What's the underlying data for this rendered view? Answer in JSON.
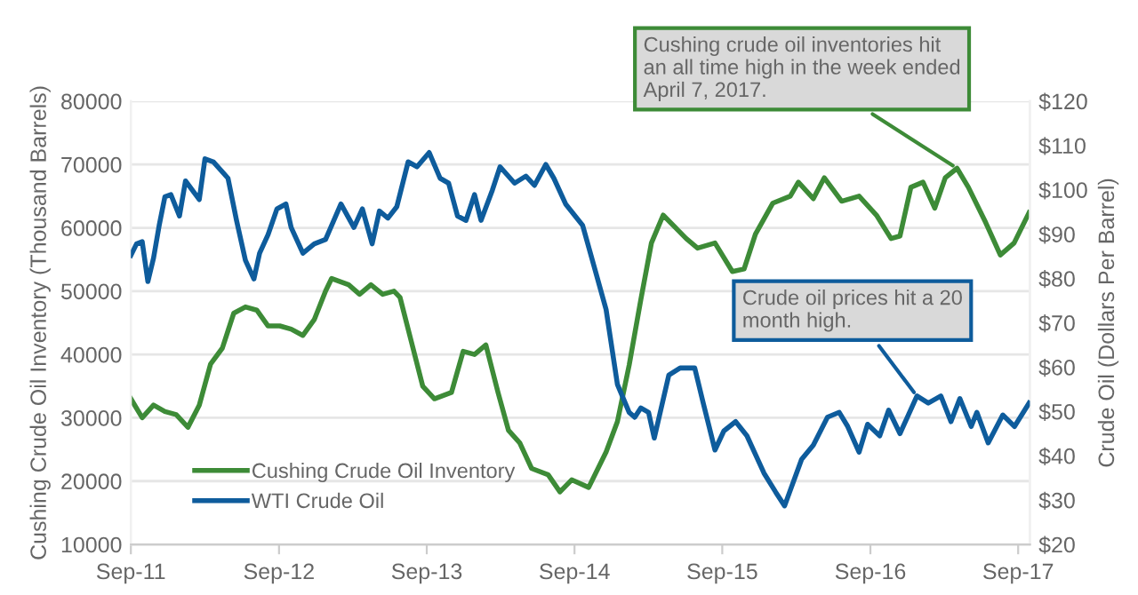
{
  "chart_data": {
    "type": "line",
    "ylabel": "Cushing Crude Oil Inventory (Thousand Barrels)",
    "y2label": "Crude Oil (Dollars Per Barrel)",
    "xlim": [
      "2011-09-01",
      "2017-09-30"
    ],
    "xticks": [
      {
        "value": "2011-09-01",
        "label": "Sep-11"
      },
      {
        "value": "2012-09-01",
        "label": "Sep-12"
      },
      {
        "value": "2013-09-01",
        "label": "Sep-13"
      },
      {
        "value": "2014-09-01",
        "label": "Sep-14"
      },
      {
        "value": "2015-09-01",
        "label": "Sep-15"
      },
      {
        "value": "2016-09-01",
        "label": "Sep-16"
      },
      {
        "value": "2017-09-01",
        "label": "Sep-17"
      }
    ],
    "ylim": [
      10000,
      80000
    ],
    "yticks": [
      10000,
      20000,
      30000,
      40000,
      50000,
      60000,
      70000,
      80000
    ],
    "y2lim": [
      20,
      120
    ],
    "y2ticks": [
      {
        "value": 20,
        "label": "$20"
      },
      {
        "value": 30,
        "label": "$30"
      },
      {
        "value": 40,
        "label": "$40"
      },
      {
        "value": 50,
        "label": "$50"
      },
      {
        "value": 60,
        "label": "$60"
      },
      {
        "value": 70,
        "label": "$70"
      },
      {
        "value": 80,
        "label": "$80"
      },
      {
        "value": 90,
        "label": "$90"
      },
      {
        "value": 100,
        "label": "$100"
      },
      {
        "value": 110,
        "label": "$110"
      },
      {
        "value": 120,
        "label": "$120"
      }
    ],
    "grid": "y",
    "legend": "bottom left",
    "series": [
      {
        "name": "Cushing Crude Oil Inventory",
        "color": "#3d8b37",
        "axis": "y",
        "x": [
          "2011-09-01",
          "2011-09-29",
          "2011-10-27",
          "2011-11-24",
          "2011-12-22",
          "2012-01-20",
          "2012-02-17",
          "2012-03-16",
          "2012-04-14",
          "2012-05-12",
          "2012-06-10",
          "2012-07-08",
          "2012-08-05",
          "2012-09-03",
          "2012-10-01",
          "2012-10-30",
          "2012-11-27",
          "2012-12-25",
          "2013-01-09",
          "2013-02-20",
          "2013-03-19",
          "2013-04-16",
          "2013-05-15",
          "2013-06-12",
          "2013-06-27",
          "2013-07-25",
          "2013-08-22",
          "2013-09-20",
          "2013-11-01",
          "2013-11-30",
          "2013-12-28",
          "2014-01-25",
          "2014-02-24",
          "2014-03-22",
          "2014-04-19",
          "2014-05-18",
          "2014-06-28",
          "2014-07-27",
          "2014-08-25",
          "2014-10-06",
          "2014-11-18",
          "2014-12-16",
          "2015-01-14",
          "2015-02-12",
          "2015-03-10",
          "2015-04-08",
          "2015-06-04",
          "2015-07-02",
          "2015-08-14",
          "2015-09-26",
          "2015-10-25",
          "2015-11-22",
          "2016-01-04",
          "2016-02-16",
          "2016-03-07",
          "2016-04-13",
          "2016-05-10",
          "2016-06-22",
          "2016-08-04",
          "2016-09-16",
          "2016-10-22",
          "2016-11-13",
          "2016-12-10",
          "2017-01-09",
          "2017-02-07",
          "2017-03-05",
          "2017-04-03",
          "2017-05-01",
          "2017-06-13",
          "2017-07-19",
          "2017-08-22",
          "2017-09-28"
        ],
        "values": [
          33000,
          30000,
          32000,
          31000,
          30500,
          28500,
          32000,
          38500,
          41000,
          46500,
          47500,
          47000,
          44500,
          44500,
          44000,
          43000,
          45500,
          50000,
          52000,
          51000,
          49500,
          51000,
          49500,
          50000,
          49000,
          42000,
          35000,
          33000,
          34000,
          40500,
          40000,
          41500,
          34000,
          28000,
          26000,
          22000,
          21000,
          18300,
          20200,
          19000,
          24600,
          29400,
          38300,
          48700,
          57600,
          62000,
          58300,
          56800,
          57600,
          53100,
          53500,
          59000,
          63900,
          65000,
          67200,
          64600,
          67900,
          64200,
          65000,
          62000,
          58300,
          58700,
          66400,
          67200,
          63100,
          67900,
          69400,
          66400,
          60800,
          55700,
          57600,
          62400
        ]
      },
      {
        "name": "WTI Crude Oil",
        "color": "#0e5c9c",
        "axis": "y2",
        "x": [
          "2011-09-01",
          "2011-09-15",
          "2011-09-29",
          "2011-10-13",
          "2011-10-27",
          "2011-11-10",
          "2011-11-24",
          "2011-12-09",
          "2011-12-30",
          "2012-01-14",
          "2012-02-17",
          "2012-03-02",
          "2012-03-23",
          "2012-04-28",
          "2012-05-19",
          "2012-06-10",
          "2012-07-01",
          "2012-07-15",
          "2012-08-05",
          "2012-08-27",
          "2012-09-18",
          "2012-10-01",
          "2012-10-30",
          "2012-11-27",
          "2012-12-25",
          "2013-02-01",
          "2013-03-05",
          "2013-03-26",
          "2013-04-19",
          "2013-05-07",
          "2013-05-28",
          "2013-06-19",
          "2013-07-17",
          "2013-08-08",
          "2013-09-07",
          "2013-10-04",
          "2013-10-25",
          "2013-11-16",
          "2013-12-07",
          "2013-12-28",
          "2014-01-13",
          "2014-02-10",
          "2014-03-01",
          "2014-04-06",
          "2014-05-04",
          "2014-05-25",
          "2014-06-22",
          "2014-07-12",
          "2014-08-10",
          "2014-09-21",
          "2014-10-20",
          "2014-11-18",
          "2014-12-16",
          "2015-01-14",
          "2015-01-28",
          "2015-02-12",
          "2015-03-03",
          "2015-03-17",
          "2015-04-22",
          "2015-05-20",
          "2015-06-25",
          "2015-07-16",
          "2015-08-14",
          "2015-09-05",
          "2015-10-04",
          "2015-11-01",
          "2015-12-13",
          "2016-01-11",
          "2016-02-02",
          "2016-03-15",
          "2016-04-13",
          "2016-05-18",
          "2016-06-16",
          "2016-07-07",
          "2016-08-04",
          "2016-08-25",
          "2016-09-24",
          "2016-10-16",
          "2016-11-13",
          "2016-12-25",
          "2017-01-22",
          "2017-02-22",
          "2017-03-19",
          "2017-04-10",
          "2017-05-08",
          "2017-05-22",
          "2017-06-19",
          "2017-07-25",
          "2017-08-23",
          "2017-09-28"
        ],
        "values": [
          85.2,
          87.8,
          88.3,
          79.3,
          84.6,
          92.0,
          98.4,
          98.9,
          94.1,
          102,
          97.8,
          107,
          106.3,
          102.6,
          93.1,
          84.1,
          79.9,
          85.7,
          89.9,
          95.7,
          96.8,
          91.5,
          85.7,
          87.8,
          88.8,
          96.8,
          91.5,
          95.7,
          87.8,
          95.2,
          93.6,
          96.2,
          106.3,
          105.2,
          108.4,
          102.6,
          101.5,
          94.1,
          93.1,
          98.9,
          93.1,
          99.9,
          105.2,
          101.5,
          103.1,
          101,
          105.7,
          102.6,
          96.8,
          92,
          82.5,
          73,
          56.1,
          49.8,
          48.7,
          50.8,
          49.8,
          44,
          58.2,
          59.8,
          59.8,
          51.9,
          41.3,
          45.6,
          47.7,
          44.5,
          36.1,
          31.8,
          28.7,
          39.2,
          42.4,
          48.7,
          49.8,
          46.6,
          40.8,
          47.1,
          44.5,
          50.3,
          45,
          53.5,
          51.9,
          53.5,
          47.7,
          52.9,
          46.6,
          49.8,
          42.9,
          49.2,
          46.6,
          51.9
        ]
      }
    ],
    "annotations": [
      {
        "text": "Cushing crude oil inventories hit an all time high in the week ended April 7, 2017.",
        "x": "2017-04-03",
        "y": 69400
      },
      {
        "text": "Crude oil prices hit a 20 month high.",
        "x": "2016-12-25",
        "y": 33400
      }
    ]
  }
}
